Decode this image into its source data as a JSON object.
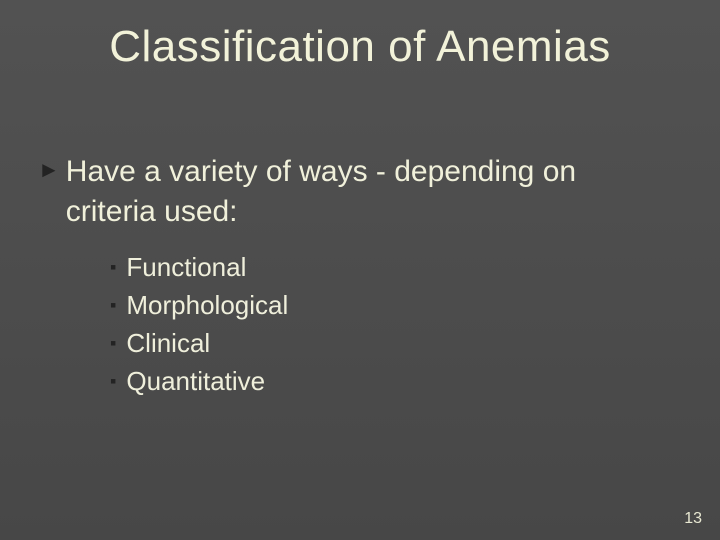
{
  "slide": {
    "title": "Classification of Anemias",
    "page_number": "13",
    "background_color": "#4a4a4a",
    "title_color": "#f2f2d9",
    "body_text_color": "#f0f0da",
    "bullet_color": "#232323",
    "title_fontsize_pt": 44,
    "l1_fontsize_pt": 30,
    "l2_fontsize_pt": 26,
    "l1_bullet_glyph": "►",
    "l2_bullet_glyph": "▪",
    "l1_items": [
      {
        "text": "Have a variety of ways - depending on criteria used:"
      }
    ],
    "l2_items": [
      {
        "text": "Functional"
      },
      {
        "text": "Morphological"
      },
      {
        "text": "Clinical"
      },
      {
        "text": "Quantitative"
      }
    ]
  }
}
